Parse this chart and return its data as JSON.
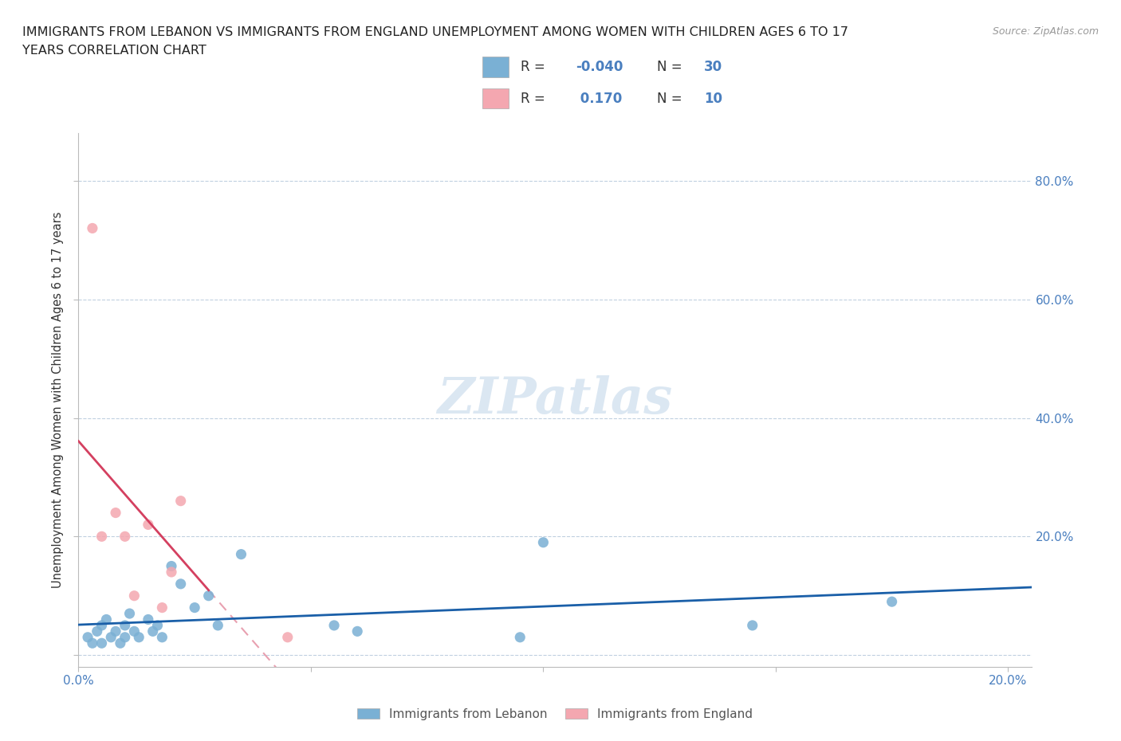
{
  "title_line1": "IMMIGRANTS FROM LEBANON VS IMMIGRANTS FROM ENGLAND UNEMPLOYMENT AMONG WOMEN WITH CHILDREN AGES 6 TO 17",
  "title_line2": "YEARS CORRELATION CHART",
  "source": "Source: ZipAtlas.com",
  "ylabel": "Unemployment Among Women with Children Ages 6 to 17 years",
  "xlim": [
    0.0,
    0.205
  ],
  "ylim": [
    -0.02,
    0.88
  ],
  "ytick_positions": [
    0.0,
    0.2,
    0.4,
    0.6,
    0.8
  ],
  "yticklabels_right": [
    "",
    "20.0%",
    "40.0%",
    "60.0%",
    "80.0%"
  ],
  "lebanon_x": [
    0.002,
    0.003,
    0.004,
    0.005,
    0.005,
    0.006,
    0.007,
    0.008,
    0.009,
    0.01,
    0.01,
    0.011,
    0.012,
    0.013,
    0.015,
    0.016,
    0.017,
    0.018,
    0.02,
    0.022,
    0.025,
    0.028,
    0.03,
    0.035,
    0.055,
    0.06,
    0.095,
    0.1,
    0.145,
    0.175
  ],
  "lebanon_y": [
    0.03,
    0.02,
    0.04,
    0.05,
    0.02,
    0.06,
    0.03,
    0.04,
    0.02,
    0.05,
    0.03,
    0.07,
    0.04,
    0.03,
    0.06,
    0.04,
    0.05,
    0.03,
    0.15,
    0.12,
    0.08,
    0.1,
    0.05,
    0.17,
    0.05,
    0.04,
    0.03,
    0.19,
    0.05,
    0.09
  ],
  "england_x": [
    0.003,
    0.005,
    0.008,
    0.01,
    0.012,
    0.015,
    0.018,
    0.02,
    0.045,
    0.022
  ],
  "england_y": [
    0.72,
    0.2,
    0.24,
    0.2,
    0.1,
    0.22,
    0.08,
    0.14,
    0.03,
    0.26
  ],
  "lebanon_color": "#7ab0d4",
  "england_color": "#f4a7b0",
  "lebanon_trend_color": "#1a5fa8",
  "england_trend_solid_color": "#d44060",
  "england_trend_dashed_color": "#e8a0b0",
  "watermark": "ZIPatlas",
  "legend_r_lebanon": "-0.040",
  "legend_n_lebanon": "30",
  "legend_r_england": "0.170",
  "legend_n_england": "10",
  "legend_label_lebanon": "Immigrants from Lebanon",
  "legend_label_england": "Immigrants from England",
  "stat_color": "#4a7fbf",
  "label_color": "#555555"
}
